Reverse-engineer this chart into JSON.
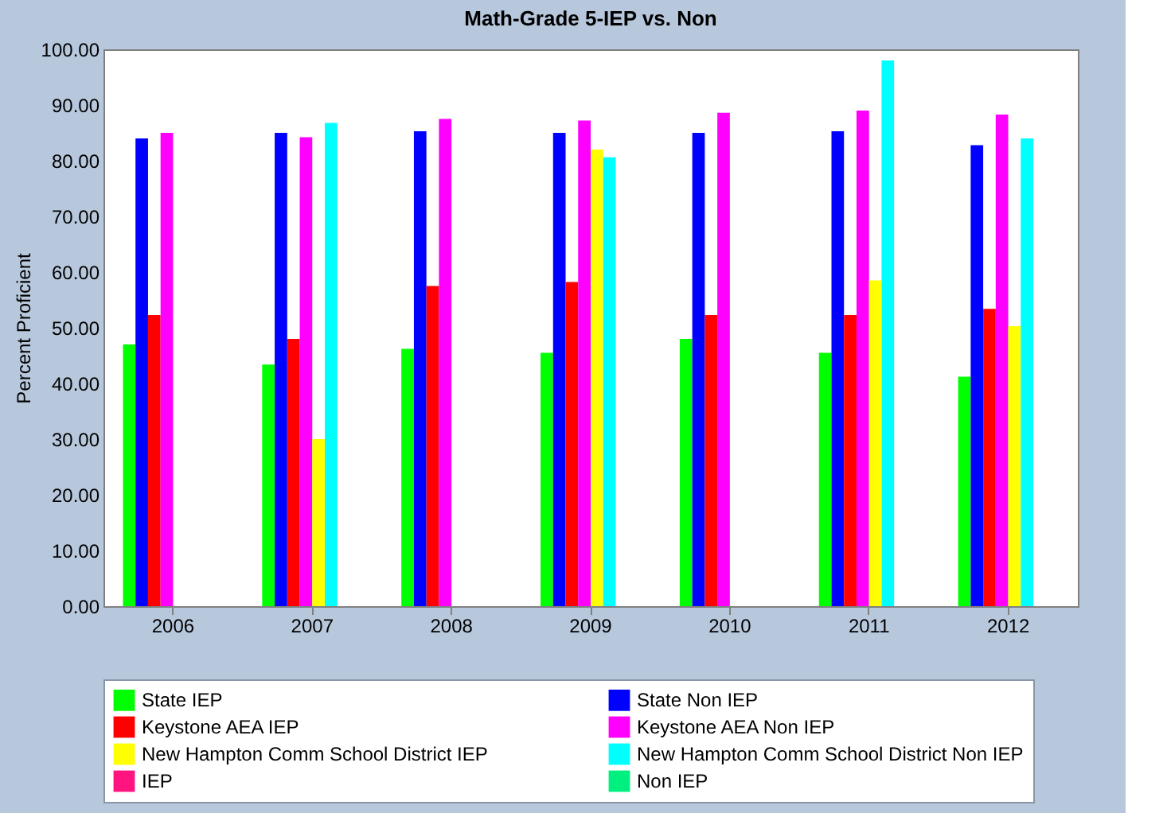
{
  "chart_data": {
    "type": "bar",
    "title": "Math-Grade 5-IEP vs. Non",
    "ylabel": "Percent Proficient",
    "categories": [
      "2006",
      "2007",
      "2008",
      "2009",
      "2010",
      "2011",
      "2012"
    ],
    "series": [
      {
        "name": "State IEP",
        "color": "#00ff00",
        "values": [
          47,
          43.4,
          46.2,
          45.5,
          48,
          45.5,
          41.2
        ]
      },
      {
        "name": "State Non IEP",
        "color": "#0000ff",
        "values": [
          84,
          85,
          85.3,
          85,
          85,
          85.3,
          82.8
        ]
      },
      {
        "name": "Keystone AEA  IEP",
        "color": "#ff0000",
        "values": [
          52.3,
          48,
          57.5,
          58.2,
          52.3,
          52.3,
          53.4
        ]
      },
      {
        "name": "Keystone AEA  Non IEP",
        "color": "#ff00ff",
        "values": [
          85,
          84.2,
          87.5,
          87.2,
          88.6,
          89,
          88.3
        ]
      },
      {
        "name": "New Hampton Comm School District IEP",
        "color": "#ffff00",
        "values": [
          null,
          30,
          null,
          82,
          null,
          58.5,
          50.3
        ]
      },
      {
        "name": "New Hampton Comm School District Non IEP",
        "color": "#00ffff",
        "values": [
          null,
          86.8,
          null,
          80.6,
          null,
          98,
          84
        ]
      },
      {
        "name": " IEP",
        "color": "#ff1480",
        "values": [
          null,
          null,
          null,
          null,
          null,
          null,
          null
        ]
      },
      {
        "name": " Non IEP",
        "color": "#00f080",
        "values": [
          null,
          null,
          null,
          null,
          null,
          null,
          null
        ]
      }
    ],
    "ylim": [
      0,
      100
    ],
    "yticks": [
      {
        "value": 0,
        "label": "0.00"
      },
      {
        "value": 10,
        "label": "10.00"
      },
      {
        "value": 20,
        "label": "20.00"
      },
      {
        "value": 30,
        "label": "30.00"
      },
      {
        "value": 40,
        "label": "40.00"
      },
      {
        "value": 50,
        "label": "50.00"
      },
      {
        "value": 60,
        "label": "60.00"
      },
      {
        "value": 70,
        "label": "70.00"
      },
      {
        "value": 80,
        "label": "80.00"
      },
      {
        "value": 90,
        "label": "90.00"
      },
      {
        "value": 100,
        "label": "100.00"
      }
    ],
    "grid": false,
    "legend": "bottom"
  }
}
